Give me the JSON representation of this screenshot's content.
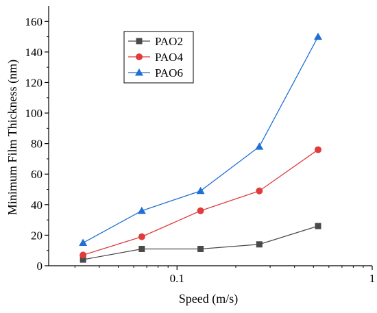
{
  "chart_data": {
    "type": "line",
    "title": "",
    "xlabel": "Speed (m/s)",
    "ylabel": "Minimum Film Thickness (nm)",
    "xscale": "log",
    "xlim": [
      0.022,
      1
    ],
    "ylim": [
      0,
      170
    ],
    "x": [
      0.033,
      0.066,
      0.132,
      0.264,
      0.528
    ],
    "xticks": [
      0.1,
      1
    ],
    "xtick_labels": [
      "0.1",
      "1"
    ],
    "yticks": [
      0,
      20,
      40,
      60,
      80,
      100,
      120,
      140,
      160
    ],
    "ytick_labels": [
      "0",
      "20",
      "40",
      "60",
      "80",
      "100",
      "120",
      "140",
      "160"
    ],
    "grid": false,
    "legend_position": "top-left",
    "series": [
      {
        "name": "PAO2",
        "marker": "square",
        "color": "#4a4a4a",
        "values": [
          4,
          11,
          11,
          14,
          26
        ]
      },
      {
        "name": "PAO4",
        "marker": "circle",
        "color": "#e03c3c",
        "values": [
          7,
          19,
          36,
          49,
          76
        ]
      },
      {
        "name": "PAO6",
        "marker": "triangle",
        "color": "#1f6fd6",
        "values": [
          15,
          36,
          49,
          78,
          150
        ]
      }
    ]
  }
}
